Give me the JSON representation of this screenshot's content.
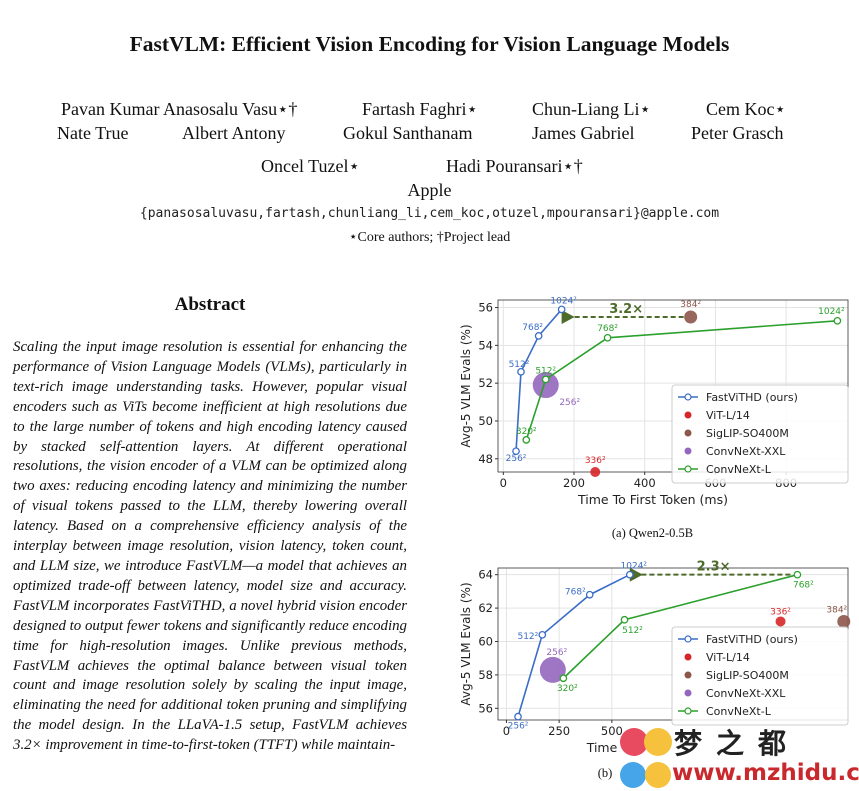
{
  "paper": {
    "title": "FastVLM: Efficient Vision Encoding for Vision Language Models",
    "author_rows": [
      [
        "Pavan Kumar Anasosalu Vasu⋆†",
        "Fartash Faghri⋆",
        "Chun-Liang Li⋆",
        "Cem Koc⋆"
      ],
      [
        "Nate True",
        "Albert Antony",
        "Gokul Santhanam",
        "James Gabriel",
        "Peter Grasch"
      ],
      [
        "Oncel Tuzel⋆",
        "Hadi Pouransari⋆†"
      ]
    ],
    "affiliation": "Apple",
    "emails": "{panasosaluvasu,fartash,chunliang_li,cem_koc,otuzel,mpouransari}@apple.com",
    "author_note": "⋆Core authors; †Project lead"
  },
  "abstract": {
    "heading": "Abstract",
    "text": "Scaling the input image resolution is essential for enhancing the performance of Vision Language Models (VLMs), particularly in text-rich image understanding tasks. However, popular visual encoders such as ViTs become inefficient at high resolutions due to the large number of tokens and high encoding latency caused by stacked self-attention layers. At different operational resolutions, the vision encoder of a VLM can be optimized along two axes: reducing encoding latency and minimizing the number of visual tokens passed to the LLM, thereby lowering overall latency. Based on a comprehensive efficiency analysis of the interplay between image resolution, vision latency, token count, and LLM size, we introduce FastVLM—a model that achieves an optimized trade-off between latency, model size and accuracy. FastVLM incorporates FastViTHD, a novel hybrid vision encoder designed to output fewer tokens and significantly reduce encoding time for high-resolution images. Unlike previous methods, FastVLM achieves the optimal balance between visual token count and image resolution solely by scaling the input image, eliminating the need for additional token pruning and simplifying the model design. In the LLaVA-1.5 setup, FastVLM achieves 3.2× improvement in time-to-first-token (TTFT) while maintain-"
  },
  "chart_data": [
    {
      "type": "scatter",
      "caption": "(a) Qwen2-0.5B",
      "xlabel": "Time To First Token (ms)",
      "ylabel": "Avg-5 VLM Evals (%)",
      "xlim": [
        -15,
        975
      ],
      "ylim": [
        47.3,
        56.4
      ],
      "xticks": [
        0,
        200,
        400,
        600,
        800
      ],
      "yticks": [
        48,
        50,
        52,
        54,
        56
      ],
      "grid": true,
      "legend_position": "right",
      "legend": [
        "FastViTHD (ours)",
        "ViT-L/14",
        "SigLIP-SO400M",
        "ConvNeXt-XXL",
        "ConvNeXt-L"
      ],
      "annotation": {
        "text": "3.2×",
        "from": [
          530,
          55.5
        ],
        "to": [
          165,
          55.5
        ]
      },
      "series": [
        {
          "name": "FastViTHD (ours)",
          "color": "#3b6dc7",
          "marker": "hollow-circle",
          "line": true,
          "points": [
            {
              "x": 36,
              "y": 48.4,
              "label": "256²"
            },
            {
              "x": 50,
              "y": 52.6,
              "label": "512²"
            },
            {
              "x": 100,
              "y": 54.5,
              "label": "768²"
            },
            {
              "x": 165,
              "y": 55.9,
              "label": "1024²"
            }
          ]
        },
        {
          "name": "ViT-L/14",
          "color": "#d62728",
          "marker": "circle",
          "size": "small",
          "line": false,
          "points": [
            {
              "x": 260,
              "y": 47.3,
              "label": "336²"
            }
          ]
        },
        {
          "name": "SigLIP-SO400M",
          "color": "#8c564b",
          "marker": "circle",
          "size": "medium",
          "line": false,
          "points": [
            {
              "x": 530,
              "y": 55.5,
              "label": "384²"
            }
          ]
        },
        {
          "name": "ConvNeXt-XXL",
          "color": "#9467bd",
          "marker": "circle",
          "size": "large",
          "line": false,
          "points": [
            {
              "x": 120,
              "y": 51.9,
              "label": "256²"
            }
          ]
        },
        {
          "name": "ConvNeXt-L",
          "color": "#2ca02c",
          "marker": "hollow-circle",
          "line": true,
          "points": [
            {
              "x": 65,
              "y": 49.0,
              "label": "320²"
            },
            {
              "x": 120,
              "y": 52.2,
              "label": "512²"
            },
            {
              "x": 295,
              "y": 54.4,
              "label": "768²"
            },
            {
              "x": 945,
              "y": 55.3,
              "label": "1024²"
            }
          ]
        }
      ]
    },
    {
      "type": "scatter",
      "caption": "(b)",
      "xlabel": "Time",
      "ylabel": "Avg-5 VLM Evals (%)",
      "xlim": [
        -40,
        1620
      ],
      "ylim": [
        55.3,
        64.4
      ],
      "xticks": [
        0,
        250,
        500
      ],
      "yticks": [
        56,
        58,
        60,
        62,
        64
      ],
      "grid": true,
      "legend_position": "right",
      "legend": [
        "FastViTHD (ours)",
        "ViT-L/14",
        "SigLIP-SO400M",
        "ConvNeXt-XXL",
        "ConvNeXt-L"
      ],
      "annotation": {
        "text": "2.3×",
        "from": [
          1380,
          64.0
        ],
        "to": [
          585,
          64.0
        ]
      },
      "series": [
        {
          "name": "FastViTHD (ours)",
          "color": "#3b6dc7",
          "marker": "hollow-circle",
          "line": true,
          "points": [
            {
              "x": 55,
              "y": 55.5,
              "label": "256²"
            },
            {
              "x": 170,
              "y": 60.4,
              "label": "512²"
            },
            {
              "x": 395,
              "y": 62.8,
              "label": "768²"
            },
            {
              "x": 585,
              "y": 64.0,
              "label": "1024²"
            }
          ]
        },
        {
          "name": "ViT-L/14",
          "color": "#d62728",
          "marker": "circle",
          "size": "small",
          "line": false,
          "points": [
            {
              "x": 1300,
              "y": 61.2,
              "label": "336²"
            }
          ]
        },
        {
          "name": "SigLIP-SO400M",
          "color": "#8c564b",
          "marker": "circle",
          "size": "medium",
          "line": false,
          "points": [
            {
              "x": 1600,
              "y": 61.2,
              "label": "384²"
            }
          ]
        },
        {
          "name": "ConvNeXt-XXL",
          "color": "#9467bd",
          "marker": "circle",
          "size": "large",
          "line": false,
          "points": [
            {
              "x": 220,
              "y": 58.3,
              "label": "256²"
            }
          ]
        },
        {
          "name": "ConvNeXt-L",
          "color": "#2ca02c",
          "marker": "hollow-circle",
          "line": true,
          "points": [
            {
              "x": 270,
              "y": 57.8,
              "label": "320²"
            },
            {
              "x": 560,
              "y": 61.3,
              "label": "512²"
            },
            {
              "x": 1380,
              "y": 64.0,
              "label": "768²"
            }
          ]
        }
      ]
    }
  ],
  "watermark": {
    "text1": "梦之都",
    "text2": "www.mzhidu.com"
  }
}
